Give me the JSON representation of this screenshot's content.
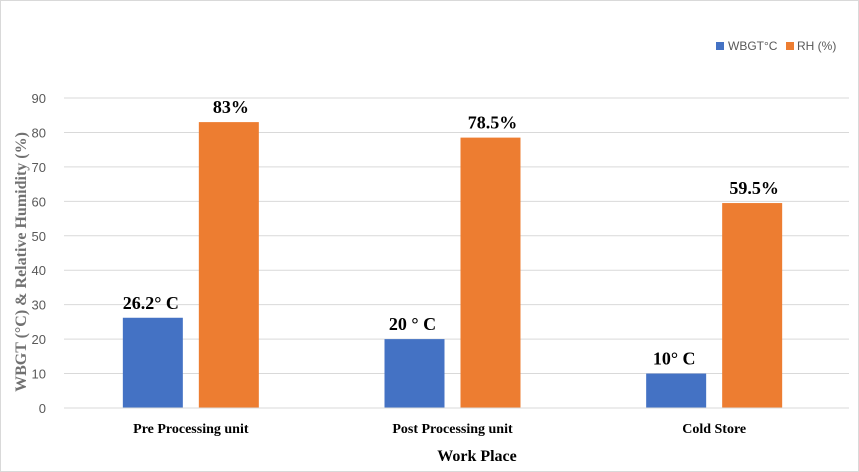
{
  "chart_data": {
    "type": "bar",
    "categories": [
      "Pre Processing unit",
      "Post Processing unit",
      "Cold Store"
    ],
    "series": [
      {
        "name": "WBGT°C",
        "color": "#4472c4",
        "values": [
          26.2,
          20,
          10
        ],
        "labels": [
          "26.2° C",
          "20 ° C",
          "10° C"
        ]
      },
      {
        "name": "RH (%)",
        "color": "#ed7d31",
        "values": [
          83,
          78.5,
          59.5
        ],
        "labels": [
          "83%",
          "78.5%",
          "59.5%"
        ]
      }
    ],
    "xlabel": "Work Place",
    "ylabel": "WBGT (°C) & Relative Humidity (%)",
    "ylim": [
      0,
      90
    ],
    "yticks": [
      0,
      10,
      20,
      30,
      40,
      50,
      60,
      70,
      80,
      90
    ],
    "grid": true,
    "legend_position": "top-right",
    "gridline_color": "#d9d9d9"
  }
}
